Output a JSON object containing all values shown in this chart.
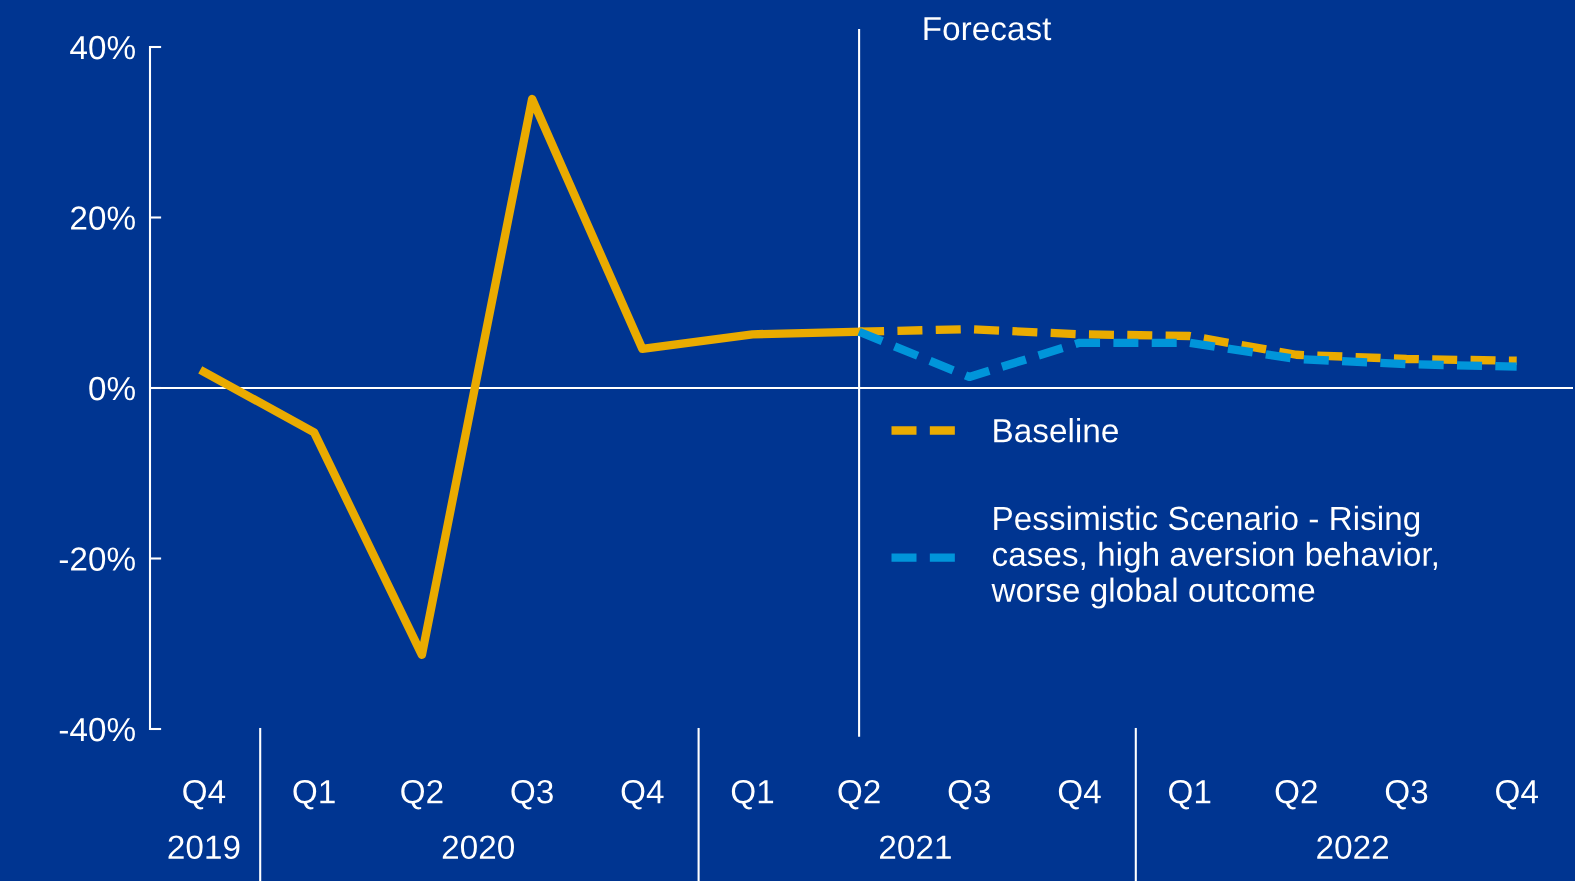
{
  "chart_data": {
    "type": "line",
    "x": [
      "2019-11-15",
      "2020-02-15",
      "2020-05-15",
      "2020-08-15",
      "2020-11-15",
      "2021-02-15",
      "2021-05-15",
      "2021-08-15",
      "2021-11-15",
      "2022-02-15",
      "2022-05-15",
      "2022-08-15",
      "2022-11-15"
    ],
    "series": [
      {
        "color": "#eaab00",
        "line_style": "solid",
        "values": [
          1.9,
          -5.2,
          -31.3,
          33.9,
          4.6,
          6.3,
          6.6,
          null,
          null,
          null,
          null,
          null,
          null
        ]
      },
      {
        "name": "Baseline",
        "color": "#eaab00",
        "line_style": "dashed",
        "values": [
          null,
          null,
          null,
          null,
          null,
          null,
          6.6,
          6.9,
          6.3,
          6.1,
          3.9,
          3.4,
          3.2
        ]
      },
      {
        "name": "Pessimistic Scenario - Rising\ncases, high aversion behavior,\nworse global outcome",
        "color": "#0095da",
        "line_style": "dashed",
        "values": [
          null,
          null,
          null,
          null,
          null,
          null,
          6.6,
          1.3,
          5.3,
          5.3,
          3.4,
          2.8,
          2.5
        ]
      }
    ],
    "xlim": [
      "2019-10-01",
      "2023-01-01"
    ],
    "xticks": [
      {
        "value": "2019-11-15",
        "label": "Q4"
      },
      {
        "value": "2020-02-15",
        "label": "Q1"
      },
      {
        "value": "2020-05-15",
        "label": "Q2"
      },
      {
        "value": "2020-08-15",
        "label": "Q3"
      },
      {
        "value": "2020-11-15",
        "label": "Q4"
      },
      {
        "value": "2021-02-15",
        "label": "Q1"
      },
      {
        "value": "2021-05-15",
        "label": "Q2"
      },
      {
        "value": "2021-08-15",
        "label": "Q3"
      },
      {
        "value": "2021-11-15",
        "label": "Q4"
      },
      {
        "value": "2022-02-15",
        "label": "Q1"
      },
      {
        "value": "2022-05-15",
        "label": "Q2"
      },
      {
        "value": "2022-08-15",
        "label": "Q3"
      },
      {
        "value": "2022-11-15",
        "label": "Q4"
      }
    ],
    "ylim": [
      -40,
      40
    ],
    "yticks": [
      {
        "value": -40,
        "label": "-40%"
      },
      {
        "value": -20,
        "label": "-20%"
      },
      {
        "value": 0,
        "label": "0%"
      },
      {
        "value": 20,
        "label": "20%"
      },
      {
        "value": 40,
        "label": "40%"
      }
    ],
    "x2lim": [
      "2019-10-01",
      "2023-01-01"
    ],
    "x2ticks": [
      {
        "value": "2019-11-15",
        "label": "2019"
      },
      {
        "value": "2020-07-01",
        "label": "2020"
      },
      {
        "value": "2021-07-01",
        "label": "2021"
      },
      {
        "value": "2022-07-01",
        "label": "2022"
      }
    ],
    "ref_lines": [
      {
        "axis": "x",
        "value": "2021-05-15",
        "label": "Forecast",
        "color": "#ffffff"
      },
      {
        "axis": "y",
        "value": 0,
        "color": "#ffffff"
      }
    ],
    "legend": "right",
    "marker": "none"
  }
}
